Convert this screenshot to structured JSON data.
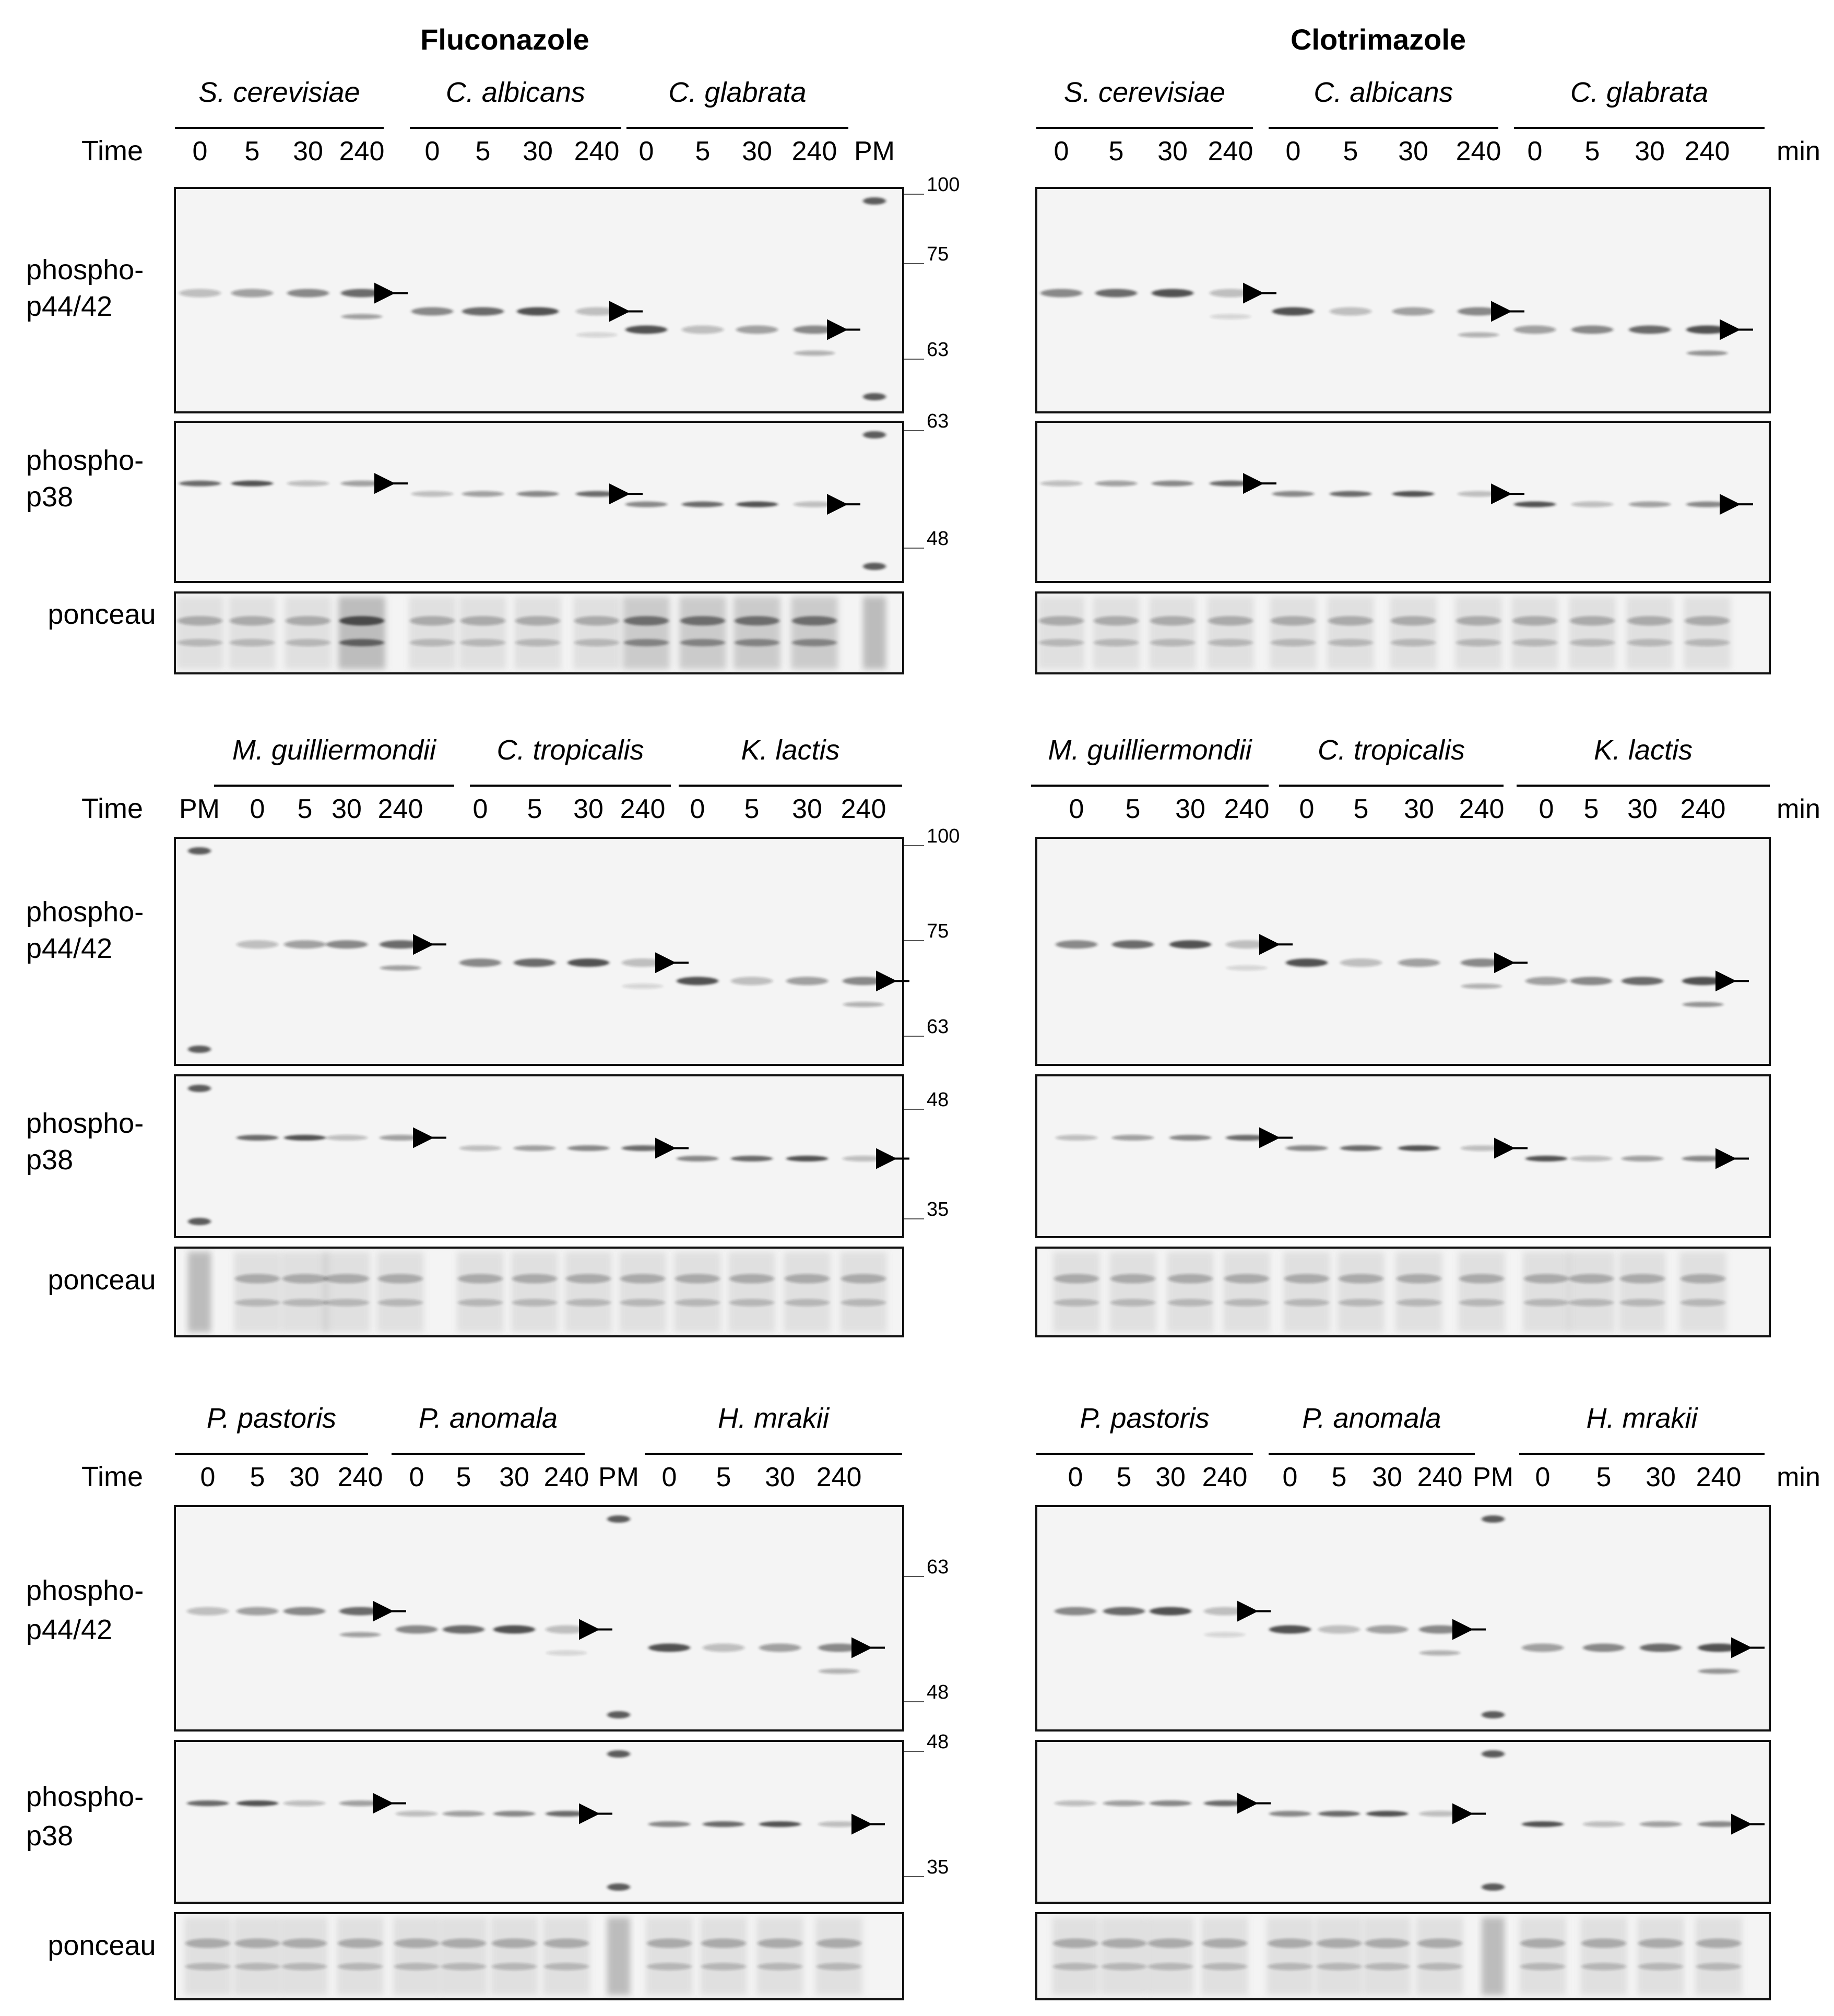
{
  "panels": [
    {
      "id": "fluconazole",
      "title": "Fluconazole",
      "rows": [
        {
          "time_label": "Time",
          "unit": "",
          "groups": [
            {
              "species": "S. cerevisiae",
              "times": [
                "0",
                "5",
                "30",
                "240"
              ]
            },
            {
              "species": "C. albicans",
              "times": [
                "0",
                "5",
                "30",
                "240"
              ]
            },
            {
              "species": "C. glabrata",
              "times": [
                "0",
                "5",
                "30",
                "240"
              ]
            }
          ],
          "pm_label": "PM",
          "blots": [
            {
              "label": [
                "phospho-",
                "p44/42"
              ],
              "markers": [
                "100",
                "75",
                "63"
              ]
            },
            {
              "label": [
                "phospho-",
                "p38"
              ],
              "markers": [
                "63",
                "48"
              ]
            },
            {
              "label": [
                "ponceau"
              ],
              "markers": []
            }
          ]
        },
        {
          "time_label": "Time",
          "unit": "",
          "groups": [
            {
              "species": "M. guilliermondii",
              "times": [
                "0",
                "5",
                "30",
                "240"
              ]
            },
            {
              "species": "C. tropicalis",
              "times": [
                "0",
                "5",
                "30",
                "240"
              ]
            },
            {
              "species": "K. lactis",
              "times": [
                "0",
                "5",
                "30",
                "240"
              ]
            }
          ],
          "pm_label": "PM",
          "blots": [
            {
              "label": [
                "phospho-",
                "p44/42"
              ],
              "markers": [
                "100",
                "75",
                "63"
              ]
            },
            {
              "label": [
                "phospho-",
                "p38"
              ],
              "markers": [
                "48",
                "35"
              ]
            },
            {
              "label": [
                "ponceau"
              ],
              "markers": []
            }
          ]
        },
        {
          "time_label": "Time",
          "unit": "",
          "groups": [
            {
              "species": "P. pastoris",
              "times": [
                "0",
                "5",
                "30",
                "240"
              ]
            },
            {
              "species": "P. anomala",
              "times": [
                "0",
                "5",
                "30",
                "240"
              ]
            },
            {
              "species": "H. mrakii",
              "times": [
                "0",
                "5",
                "30",
                "240"
              ]
            }
          ],
          "pm_label": "PM",
          "blots": [
            {
              "label": [
                "phospho-",
                "p44/42"
              ],
              "markers": [
                "63",
                "48"
              ]
            },
            {
              "label": [
                "phospho-",
                "p38"
              ],
              "markers": [
                "48",
                "35"
              ]
            },
            {
              "label": [
                "ponceau"
              ],
              "markers": []
            }
          ]
        }
      ]
    },
    {
      "id": "clotrimazole",
      "title": "Clotrimazole",
      "rows": [
        {
          "time_label": "",
          "unit": "min",
          "groups": [
            {
              "species": "S. cerevisiae",
              "times": [
                "0",
                "5",
                "30",
                "240"
              ]
            },
            {
              "species": "C. albicans",
              "times": [
                "0",
                "5",
                "30",
                "240"
              ]
            },
            {
              "species": "C. glabrata",
              "times": [
                "0",
                "5",
                "30",
                "240"
              ]
            }
          ],
          "pm_label": "",
          "blots": [
            {
              "label": [],
              "markers": []
            },
            {
              "label": [],
              "markers": []
            },
            {
              "label": [],
              "markers": []
            }
          ]
        },
        {
          "time_label": "",
          "unit": "min",
          "groups": [
            {
              "species": "M. guilliermondii",
              "times": [
                "0",
                "5",
                "30",
                "240"
              ]
            },
            {
              "species": "C. tropicalis",
              "times": [
                "0",
                "5",
                "30",
                "240"
              ]
            },
            {
              "species": "K. lactis",
              "times": [
                "0",
                "5",
                "30",
                "240"
              ]
            }
          ],
          "pm_label": "",
          "blots": [
            {
              "label": [],
              "markers": []
            },
            {
              "label": [],
              "markers": []
            },
            {
              "label": [],
              "markers": []
            }
          ]
        },
        {
          "time_label": "",
          "unit": "min",
          "groups": [
            {
              "species": "P. pastoris",
              "times": [
                "0",
                "5",
                "30",
                "240"
              ]
            },
            {
              "species": "P. anomala",
              "times": [
                "0",
                "5",
                "30",
                "240"
              ]
            },
            {
              "species": "H. mrakii",
              "times": [
                "0",
                "5",
                "30",
                "240"
              ]
            }
          ],
          "pm_label": "PM",
          "blots": [
            {
              "label": [],
              "markers": []
            },
            {
              "label": [],
              "markers": []
            },
            {
              "label": [],
              "markers": []
            }
          ]
        }
      ]
    }
  ],
  "colors": {
    "band": "#1f1f1f",
    "ponceau": "#7a7a7a",
    "frame": "#111111",
    "membrane": "#f4f4f4"
  }
}
